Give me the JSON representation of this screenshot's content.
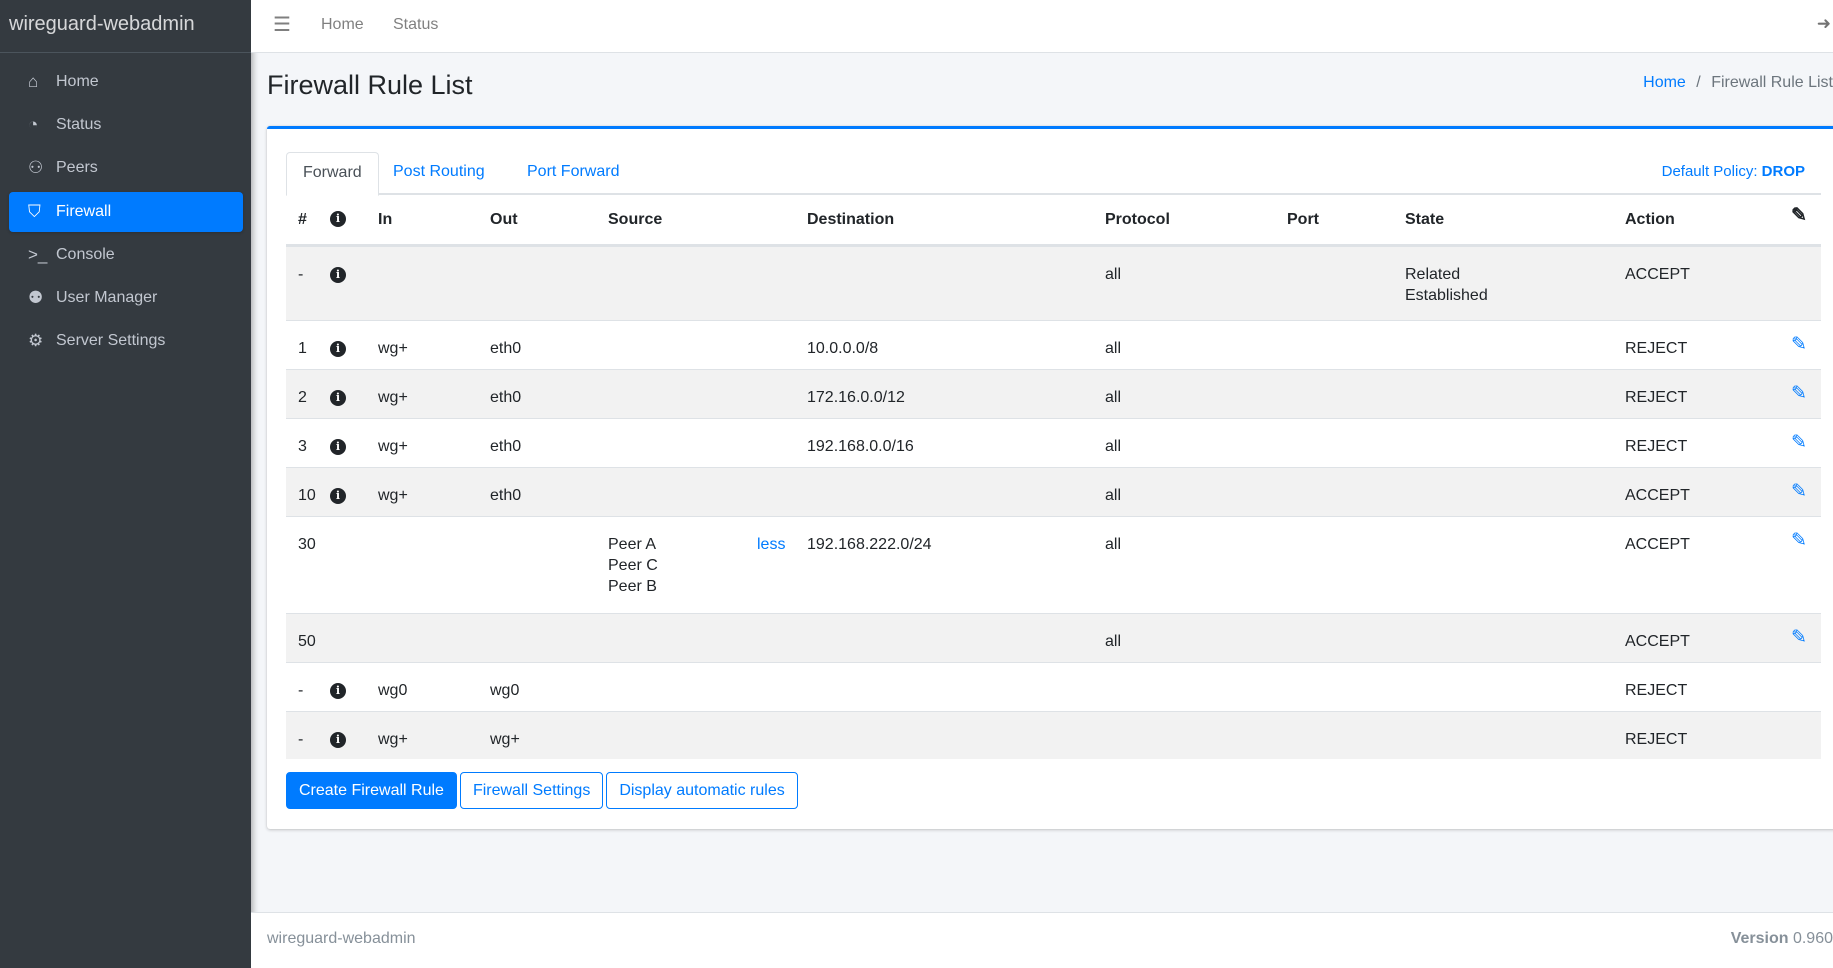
{
  "sidebar": {
    "brand": "wireguard-webadmin",
    "items": [
      {
        "label": "Home",
        "icon": "home-icon",
        "glyph": "⌂"
      },
      {
        "label": "Status",
        "icon": "tachometer-icon",
        "glyph": "◔"
      },
      {
        "label": "Peers",
        "icon": "users-cog-icon",
        "glyph": "⚇"
      },
      {
        "label": "Firewall",
        "icon": "shield-icon",
        "glyph": "⛉",
        "active": true
      },
      {
        "label": "Console",
        "icon": "terminal-icon",
        "glyph": ">_"
      },
      {
        "label": "User Manager",
        "icon": "users-icon",
        "glyph": "⚉"
      },
      {
        "label": "Server Settings",
        "icon": "cogs-icon",
        "glyph": "⚙"
      }
    ]
  },
  "topbar": {
    "links": [
      "Home",
      "Status"
    ]
  },
  "page": {
    "title": "Firewall Rule List",
    "breadcrumb": {
      "home": "Home",
      "sep": "/",
      "current": "Firewall Rule List"
    }
  },
  "tabs": [
    "Forward",
    "Post Routing",
    "Port Forward"
  ],
  "active_tab": "Forward",
  "policy": {
    "label": "Default Policy:",
    "value": "DROP"
  },
  "table": {
    "headers": {
      "num": "#",
      "in": "In",
      "out": "Out",
      "source": "Source",
      "destination": "Destination",
      "protocol": "Protocol",
      "port": "Port",
      "state": "State",
      "action": "Action"
    },
    "rows": [
      {
        "num": "-",
        "info": true,
        "in": "",
        "out": "",
        "source": [],
        "less": "",
        "destination": "",
        "protocol": "all",
        "port": "",
        "state": [
          "Related",
          "Established"
        ],
        "action": "ACCEPT",
        "edit": false
      },
      {
        "num": "1",
        "info": true,
        "in": "wg+",
        "out": "eth0",
        "source": [],
        "less": "",
        "destination": "10.0.0.0/8",
        "protocol": "all",
        "port": "",
        "state": [],
        "action": "REJECT",
        "edit": true
      },
      {
        "num": "2",
        "info": true,
        "in": "wg+",
        "out": "eth0",
        "source": [],
        "less": "",
        "destination": "172.16.0.0/12",
        "protocol": "all",
        "port": "",
        "state": [],
        "action": "REJECT",
        "edit": true
      },
      {
        "num": "3",
        "info": true,
        "in": "wg+",
        "out": "eth0",
        "source": [],
        "less": "",
        "destination": "192.168.0.0/16",
        "protocol": "all",
        "port": "",
        "state": [],
        "action": "REJECT",
        "edit": true
      },
      {
        "num": "10",
        "info": true,
        "in": "wg+",
        "out": "eth0",
        "source": [],
        "less": "",
        "destination": "",
        "protocol": "all",
        "port": "",
        "state": [],
        "action": "ACCEPT",
        "edit": true
      },
      {
        "num": "30",
        "info": false,
        "in": "",
        "out": "",
        "source": [
          "Peer A",
          "Peer C",
          "Peer B"
        ],
        "less": "less",
        "destination": "192.168.222.0/24",
        "protocol": "all",
        "port": "",
        "state": [],
        "action": "ACCEPT",
        "edit": true
      },
      {
        "num": "50",
        "info": false,
        "in": "",
        "out": "",
        "source": [],
        "less": "",
        "destination": "",
        "protocol": "all",
        "port": "",
        "state": [],
        "action": "ACCEPT",
        "edit": true
      },
      {
        "num": "-",
        "info": true,
        "in": "wg0",
        "out": "wg0",
        "source": [],
        "less": "",
        "destination": "",
        "protocol": "",
        "port": "",
        "state": [],
        "action": "REJECT",
        "edit": false
      },
      {
        "num": "-",
        "info": true,
        "in": "wg+",
        "out": "wg+",
        "source": [],
        "less": "",
        "destination": "",
        "protocol": "",
        "port": "",
        "state": [],
        "action": "REJECT",
        "edit": false
      }
    ]
  },
  "buttons": {
    "create": "Create Firewall Rule",
    "settings": "Firewall Settings",
    "automatic": "Display automatic rules"
  },
  "footer": {
    "brand": "wireguard-webadmin",
    "version_label": "Version",
    "version": "0.960"
  }
}
